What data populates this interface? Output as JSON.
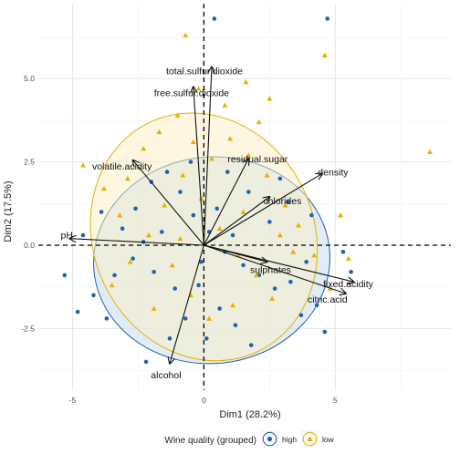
{
  "chart_data": {
    "type": "scatter",
    "title": "",
    "xlabel": "Dim1 (28.2%)",
    "ylabel": "Dim2 (17.5%)",
    "xlim": [
      -6.3,
      9.4
    ],
    "ylim": [
      -4.35,
      7.25
    ],
    "x_ticks": [
      {
        "value": -5,
        "label": "-5"
      },
      {
        "value": 0,
        "label": "0"
      },
      {
        "value": 5,
        "label": "5"
      }
    ],
    "y_ticks": [
      {
        "value": -2.5,
        "label": "-2.5"
      },
      {
        "value": 0,
        "label": "0.0"
      },
      {
        "value": 2.5,
        "label": "2.5"
      },
      {
        "value": 5,
        "label": "5.0"
      }
    ],
    "grid": true,
    "reference_lines": {
      "x": 0,
      "y": 0,
      "style": "dashed"
    },
    "legend": {
      "title": "Wine quality (grouped)",
      "position": "bottom",
      "items": [
        {
          "label": "high",
          "shape": "circle",
          "color": "#1f63ad"
        },
        {
          "label": "low",
          "shape": "triangle",
          "color": "#e6b200"
        }
      ]
    },
    "series": [
      {
        "name": "high",
        "shape": "circle",
        "color": "#1f63ad",
        "ellipse": {
          "cx": 0.3,
          "cy": -0.45,
          "rx": 4.5,
          "ry": 3.1,
          "angle_deg": 5,
          "fill": "#c9dcef",
          "stroke": "#1f63ad"
        },
        "points": [
          [
            0.4,
            6.8
          ],
          [
            4.7,
            6.8
          ],
          [
            -5.3,
            -0.9
          ],
          [
            -4.8,
            -2.0
          ],
          [
            -2.2,
            -3.5
          ],
          [
            -4.2,
            -1.5
          ],
          [
            -3.7,
            -2.2
          ],
          [
            -3.1,
            0.5
          ],
          [
            -2.6,
            1.1
          ],
          [
            -2.0,
            1.9
          ],
          [
            -1.4,
            2.2
          ],
          [
            -0.9,
            1.6
          ],
          [
            -0.4,
            0.9
          ],
          [
            0.2,
            0.4
          ],
          [
            0.8,
            -0.2
          ],
          [
            1.5,
            -0.6
          ],
          [
            2.1,
            -0.9
          ],
          [
            2.7,
            -1.3
          ],
          [
            3.3,
            -1.1
          ],
          [
            3.9,
            -0.5
          ],
          [
            4.3,
            -1.8
          ],
          [
            4.6,
            -2.6
          ],
          [
            -0.2,
            -1.2
          ],
          [
            0.6,
            -1.9
          ],
          [
            1.2,
            -2.4
          ],
          [
            -1.1,
            -1.3
          ],
          [
            -1.9,
            -0.8
          ],
          [
            -2.7,
            -0.4
          ],
          [
            -3.4,
            -0.9
          ],
          [
            2.5,
            0.7
          ],
          [
            3.2,
            1.3
          ],
          [
            1.7,
            1.6
          ],
          [
            0.9,
            2.2
          ],
          [
            -0.5,
            2.5
          ],
          [
            -1.6,
            0.4
          ],
          [
            -2.3,
            0.1
          ],
          [
            0.1,
            -2.8
          ],
          [
            1.8,
            -3.0
          ],
          [
            -0.7,
            -2.2
          ],
          [
            3.7,
            -2.1
          ],
          [
            5.3,
            -0.2
          ],
          [
            5.6,
            -0.8
          ],
          [
            -4.6,
            0.3
          ],
          [
            -3.9,
            1.0
          ],
          [
            2.9,
            2.0
          ],
          [
            4.1,
            0.9
          ],
          [
            -1.3,
            -2.8
          ],
          [
            0.5,
            1.1
          ],
          [
            -0.1,
            -0.5
          ],
          [
            1.1,
            0.3
          ]
        ]
      },
      {
        "name": "low",
        "shape": "triangle",
        "color": "#e6b200",
        "ellipse": {
          "cx": 0.0,
          "cy": 0.25,
          "rx": 4.2,
          "ry": 3.8,
          "angle_deg": 25,
          "fill": "#fbefc6",
          "stroke": "#e6b200"
        },
        "points": [
          [
            -0.7,
            6.3
          ],
          [
            4.6,
            5.7
          ],
          [
            8.6,
            2.8
          ],
          [
            1.6,
            4.9
          ],
          [
            2.5,
            4.4
          ],
          [
            -4.6,
            2.4
          ],
          [
            -3.8,
            1.7
          ],
          [
            -2.9,
            2.0
          ],
          [
            -2.3,
            2.9
          ],
          [
            -1.7,
            3.4
          ],
          [
            -1.0,
            3.9
          ],
          [
            -0.4,
            3.1
          ],
          [
            0.3,
            2.6
          ],
          [
            1.0,
            3.2
          ],
          [
            1.7,
            2.7
          ],
          [
            2.4,
            2.1
          ],
          [
            3.1,
            1.2
          ],
          [
            3.6,
            0.6
          ],
          [
            4.2,
            -0.3
          ],
          [
            4.8,
            -1.3
          ],
          [
            2.0,
            -0.9
          ],
          [
            1.3,
            -0.3
          ],
          [
            0.6,
            0.5
          ],
          [
            -0.1,
            1.4
          ],
          [
            -0.8,
            2.1
          ],
          [
            -1.5,
            1.2
          ],
          [
            -2.1,
            0.3
          ],
          [
            -2.8,
            -0.5
          ],
          [
            -3.5,
            -1.2
          ],
          [
            -1.2,
            -0.6
          ],
          [
            -0.5,
            -1.5
          ],
          [
            0.2,
            -2.2
          ],
          [
            1.1,
            -1.8
          ],
          [
            2.6,
            -1.6
          ],
          [
            3.4,
            -0.2
          ],
          [
            -3.2,
            0.9
          ],
          [
            5.2,
            0.9
          ],
          [
            5.5,
            -0.4
          ],
          [
            0.8,
            4.2
          ],
          [
            -0.2,
            4.7
          ],
          [
            2.1,
            3.7
          ],
          [
            -1.9,
            -1.9
          ],
          [
            2.9,
            0.3
          ],
          [
            1.5,
            1.0
          ],
          [
            -0.9,
            0.2
          ]
        ]
      }
    ],
    "vectors": [
      {
        "label": "total.sulfur.dioxide",
        "x": 0.3,
        "y": 5.35
      },
      {
        "label": "free.sulfur.dioxide",
        "x": -0.4,
        "y": 4.75
      },
      {
        "label": "density",
        "x": 4.5,
        "y": 2.15
      },
      {
        "label": "residual.sugar",
        "x": 1.7,
        "y": 2.6
      },
      {
        "label": "volatile.acidity",
        "x": -2.7,
        "y": 2.55
      },
      {
        "label": "chlorides",
        "x": 2.5,
        "y": 1.45
      },
      {
        "label": "pH",
        "x": -5.1,
        "y": 0.2
      },
      {
        "label": "sulphates",
        "x": 2.4,
        "y": -0.5
      },
      {
        "label": "fixed.acidity",
        "x": 5.7,
        "y": -1.1
      },
      {
        "label": "citric.acid",
        "x": 5.4,
        "y": -1.45
      },
      {
        "label": "alcohol",
        "x": -1.3,
        "y": -3.55
      }
    ]
  }
}
